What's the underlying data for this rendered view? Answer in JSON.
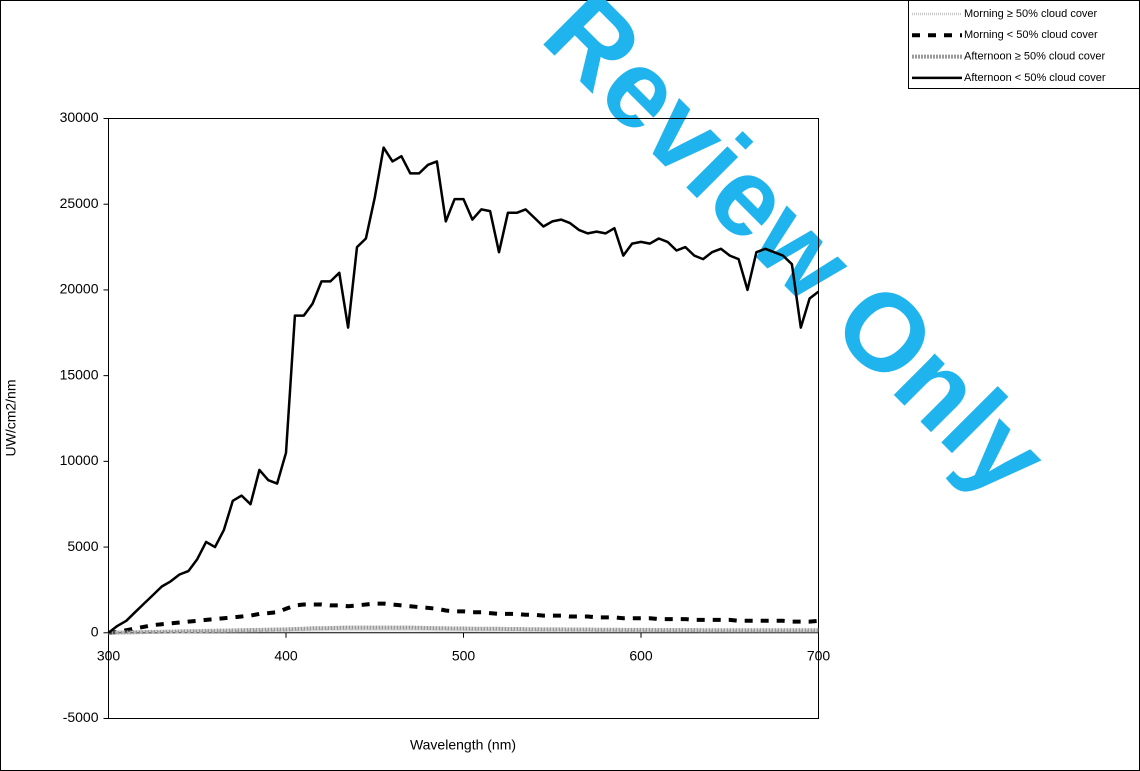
{
  "chart_data": {
    "type": "line",
    "xlabel": "Wavelength (nm)",
    "ylabel": "UW/cm2/nm",
    "watermark": "Review Only",
    "xlim": [
      300,
      700
    ],
    "xticks": [
      300,
      400,
      500,
      600,
      700
    ],
    "ylim": [
      -5000,
      30000
    ],
    "yticks": [
      -5000,
      0,
      5000,
      10000,
      15000,
      20000,
      25000,
      30000
    ],
    "grid": false,
    "legend": "top-right",
    "x": [
      300,
      305,
      310,
      315,
      320,
      325,
      330,
      335,
      340,
      345,
      350,
      355,
      360,
      365,
      370,
      375,
      380,
      385,
      390,
      395,
      400,
      405,
      410,
      415,
      420,
      425,
      430,
      435,
      440,
      445,
      450,
      455,
      460,
      465,
      470,
      475,
      480,
      485,
      490,
      495,
      500,
      505,
      510,
      515,
      520,
      525,
      530,
      535,
      540,
      545,
      550,
      555,
      560,
      565,
      570,
      575,
      580,
      585,
      590,
      595,
      600,
      605,
      610,
      615,
      620,
      625,
      630,
      635,
      640,
      645,
      650,
      655,
      660,
      665,
      670,
      675,
      680,
      685,
      690,
      695,
      700
    ],
    "series": [
      {
        "name": "Morning ≥ 50% cloud cover",
        "color": "#c8c8c8",
        "style": "dotted",
        "values": [
          0,
          5,
          10,
          15,
          20,
          25,
          30,
          35,
          40,
          45,
          50,
          55,
          60,
          65,
          70,
          75,
          80,
          85,
          90,
          95,
          100,
          110,
          120,
          130,
          140,
          150,
          150,
          150,
          150,
          150,
          150,
          150,
          150,
          150,
          150,
          140,
          140,
          130,
          130,
          120,
          120,
          120,
          110,
          110,
          110,
          100,
          100,
          100,
          100,
          100,
          100,
          100,
          100,
          100,
          100,
          90,
          90,
          90,
          90,
          90,
          90,
          90,
          90,
          90,
          90,
          90,
          90,
          80,
          80,
          80,
          80,
          80,
          80,
          80,
          80,
          80,
          80,
          80,
          80,
          80,
          80
        ]
      },
      {
        "name": "Morning < 50% cloud cover",
        "color": "#000000",
        "style": "dashed",
        "values": [
          0,
          50,
          150,
          250,
          350,
          450,
          500,
          550,
          600,
          650,
          700,
          750,
          800,
          850,
          900,
          950,
          1000,
          1100,
          1150,
          1200,
          1400,
          1600,
          1650,
          1650,
          1650,
          1600,
          1600,
          1550,
          1600,
          1650,
          1700,
          1700,
          1650,
          1600,
          1550,
          1500,
          1450,
          1400,
          1300,
          1250,
          1250,
          1200,
          1200,
          1150,
          1100,
          1100,
          1100,
          1050,
          1050,
          1000,
          1000,
          1000,
          950,
          950,
          950,
          900,
          900,
          900,
          850,
          850,
          850,
          850,
          800,
          800,
          800,
          800,
          750,
          750,
          750,
          750,
          750,
          700,
          700,
          700,
          700,
          700,
          700,
          650,
          650,
          650,
          700
        ]
      },
      {
        "name": "Afternoon ≥ 50% cloud cover",
        "color": "#999999",
        "style": "striped",
        "values": [
          0,
          10,
          20,
          30,
          40,
          50,
          60,
          70,
          80,
          90,
          100,
          110,
          120,
          130,
          140,
          150,
          160,
          170,
          180,
          190,
          200,
          220,
          240,
          260,
          270,
          280,
          290,
          300,
          300,
          300,
          300,
          300,
          300,
          300,
          300,
          290,
          280,
          270,
          260,
          250,
          250,
          240,
          240,
          230,
          230,
          220,
          220,
          210,
          210,
          200,
          200,
          200,
          190,
          190,
          190,
          180,
          180,
          180,
          170,
          170,
          170,
          170,
          160,
          160,
          160,
          160,
          160,
          150,
          150,
          150,
          150,
          150,
          150,
          150,
          150,
          150,
          150,
          150,
          150,
          150,
          150
        ]
      },
      {
        "name": "Afternoon < 50% cloud cover",
        "color": "#000000",
        "style": "solid",
        "values": [
          0,
          400,
          700,
          1200,
          1700,
          2200,
          2700,
          3000,
          3400,
          3600,
          4300,
          5300,
          5000,
          6000,
          7700,
          8000,
          7500,
          9500,
          8900,
          8700,
          10500,
          18500,
          18500,
          19200,
          20500,
          20500,
          21000,
          17800,
          22500,
          23000,
          25400,
          28300,
          27500,
          27800,
          26800,
          26800,
          27300,
          27500,
          24000,
          25300,
          25300,
          24100,
          24700,
          24600,
          22200,
          24500,
          24500,
          24700,
          24200,
          23700,
          24000,
          24100,
          23900,
          23500,
          23300,
          23400,
          23300,
          23600,
          22000,
          22700,
          22800,
          22700,
          23000,
          22800,
          22300,
          22500,
          22000,
          21800,
          22200,
          22400,
          22000,
          21800,
          20000,
          22200,
          22400,
          22200,
          22000,
          21500,
          17800,
          19500,
          19900
        ]
      }
    ]
  }
}
